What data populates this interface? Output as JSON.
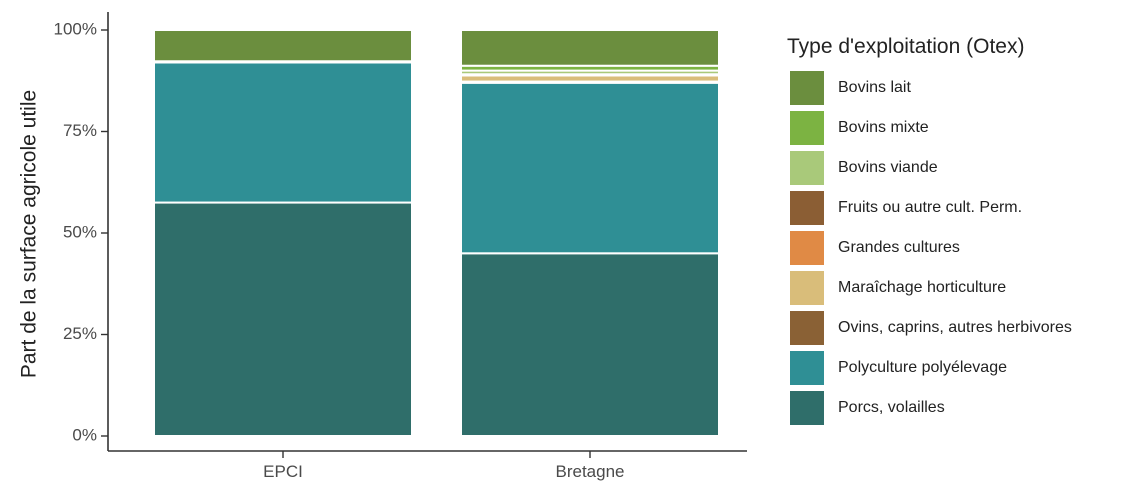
{
  "chart_data": {
    "type": "bar",
    "stacked": true,
    "categories": [
      "EPCI",
      "Bretagne"
    ],
    "ylabel": "Part de la surface agricole utile",
    "xlabel": "",
    "ylim": [
      0,
      100
    ],
    "y_ticks": [
      "0%",
      "25%",
      "50%",
      "75%",
      "100%"
    ],
    "y_tick_values": [
      0,
      25,
      50,
      75,
      100
    ],
    "legend": {
      "title": "Type d'exploitation (Otex)",
      "placement": "right"
    },
    "grid": false,
    "series": [
      {
        "name": "Porcs, volailles",
        "color": "#2f6e6a",
        "values": [
          57.5,
          45
        ]
      },
      {
        "name": "Polyculture polyélevage",
        "color": "#2f8f95",
        "values": [
          34.5,
          42
        ]
      },
      {
        "name": "Ovins, caprins, autres herbivores",
        "color": "#8a6135",
        "values": [
          0,
          0.3
        ]
      },
      {
        "name": "Maraîchage horticulture",
        "color": "#d9bd7a",
        "values": [
          0,
          1.5
        ]
      },
      {
        "name": "Grandes cultures",
        "color": "#e08a45",
        "values": [
          0,
          0.2
        ]
      },
      {
        "name": "Fruits ou autre cult. Perm.",
        "color": "#8b5e34",
        "values": [
          0,
          0.1
        ]
      },
      {
        "name": "Bovins viande",
        "color": "#a9c97a",
        "values": [
          0,
          0.9
        ]
      },
      {
        "name": "Bovins mixte",
        "color": "#7cb342",
        "values": [
          0.3,
          1.2
        ]
      },
      {
        "name": "Bovins lait",
        "color": "#6b8e3e",
        "values": [
          7.7,
          8.8
        ]
      }
    ]
  }
}
